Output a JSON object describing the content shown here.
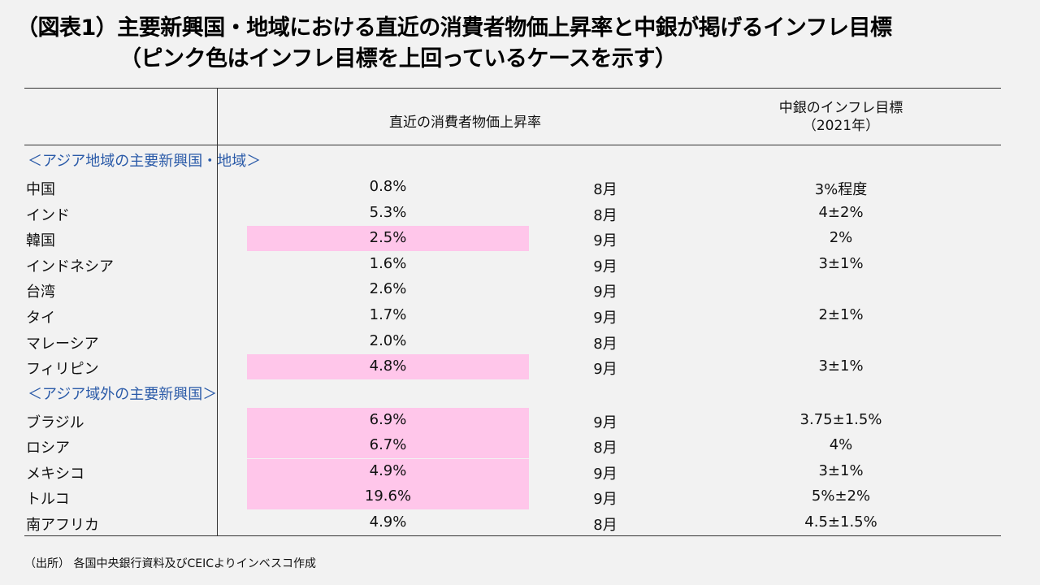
{
  "title": {
    "line1": "（図表1）主要新興国・地域における直近の消費者物価上昇率と中銀が掲げるインフレ目標",
    "line2": "（ピンク色はインフレ目標を上回っているケースを示す）"
  },
  "header": {
    "cpi": "直近の消費者物価上昇率",
    "target_line1": "中銀のインフレ目標",
    "target_line2": "（2021年）"
  },
  "sections": {
    "asia": "＜アジア地域の主要新興国・地域＞",
    "non_asia": "＜アジア域外の主要新興国＞"
  },
  "rows": [
    {
      "name": "中国",
      "cpi": "0.8%",
      "month": "8月",
      "target": "3%程度",
      "exceeds": false
    },
    {
      "name": "インド",
      "cpi": "5.3%",
      "month": "8月",
      "target": "4±2%",
      "exceeds": false
    },
    {
      "name": "韓国",
      "cpi": "2.5%",
      "month": "9月",
      "target": "2%",
      "exceeds": true
    },
    {
      "name": "インドネシア",
      "cpi": "1.6%",
      "month": "9月",
      "target": "3±1%",
      "exceeds": false
    },
    {
      "name": "台湾",
      "cpi": "2.6%",
      "month": "9月",
      "target": "",
      "exceeds": false
    },
    {
      "name": "タイ",
      "cpi": "1.7%",
      "month": "9月",
      "target": "2±1%",
      "exceeds": false
    },
    {
      "name": "マレーシア",
      "cpi": "2.0%",
      "month": "8月",
      "target": "",
      "exceeds": false
    },
    {
      "name": "フィリピン",
      "cpi": "4.8%",
      "month": "9月",
      "target": "3±1%",
      "exceeds": true
    },
    {
      "name": "ブラジル",
      "cpi": "6.9%",
      "month": "9月",
      "target": "3.75±1.5%",
      "exceeds": true
    },
    {
      "name": "ロシア",
      "cpi": "6.7%",
      "month": "8月",
      "target": "4%",
      "exceeds": true
    },
    {
      "name": "メキシコ",
      "cpi": "4.9%",
      "month": "9月",
      "target": "3±1%",
      "exceeds": true
    },
    {
      "name": "トルコ",
      "cpi": "19.6%",
      "month": "9月",
      "target": "5%±2%",
      "exceeds": true
    },
    {
      "name": "南アフリカ",
      "cpi": "4.9%",
      "month": "8月",
      "target": "4.5±1.5%",
      "exceeds": false
    }
  ],
  "highlight_color": "#ffc6ea",
  "section_color": "#2a5aa8",
  "source": "（出所） 各国中央銀行資料及びCEICよりインベスコ作成"
}
